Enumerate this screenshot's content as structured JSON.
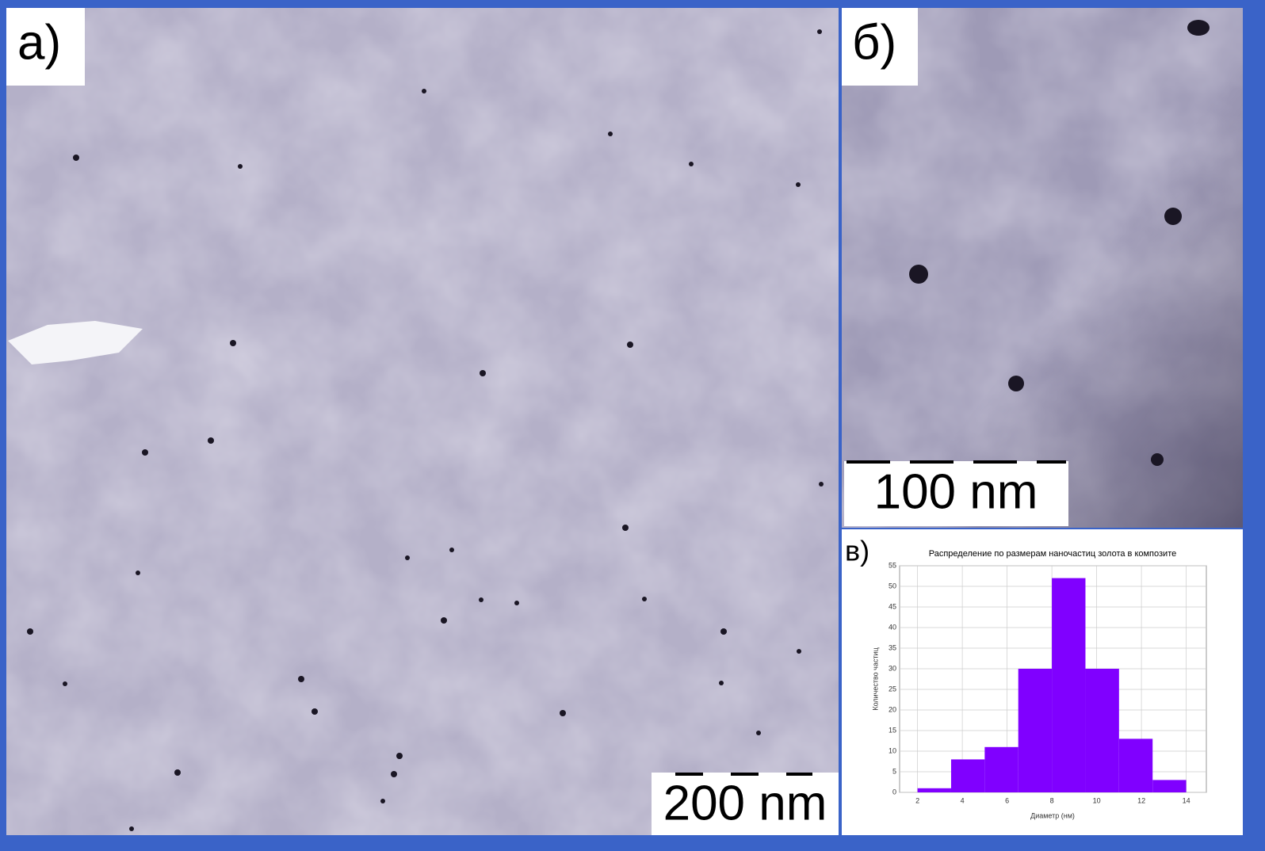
{
  "panels": [
    {
      "label": "а)",
      "scale_bar": "200 nm"
    },
    {
      "label": "б)",
      "scale_bar": "100 nm"
    },
    {
      "label": "в)"
    }
  ],
  "chart_data": {
    "type": "histogram",
    "title": "Распределение по размерам наночастиц золота в композите",
    "x_label": "Диаметр (нм)",
    "y_label": "Количество частиц",
    "bins": [
      2,
      3.5,
      5,
      6.5,
      8,
      9.5,
      11,
      12.5,
      14
    ],
    "values": [
      1,
      8,
      11,
      30,
      52,
      30,
      13,
      3
    ],
    "color": "#8000ff",
    "xlim": [
      1.2,
      14.9
    ],
    "xticks": [
      2,
      4,
      6,
      8,
      10,
      12,
      14
    ],
    "ylim": [
      0,
      55
    ],
    "yticks": [
      0,
      5,
      10,
      15,
      20,
      25,
      30,
      35,
      40,
      45,
      50,
      55
    ],
    "grid": true
  }
}
